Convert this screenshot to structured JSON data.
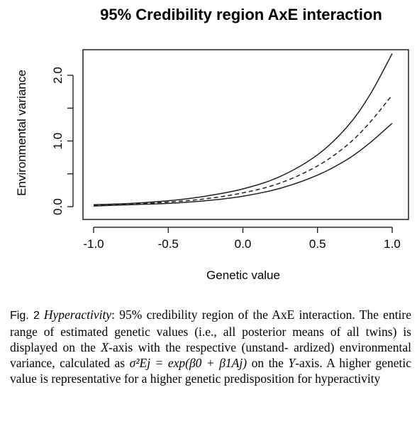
{
  "chart_data": {
    "type": "line",
    "title": "95% Credibility region AxE interaction",
    "xlabel": "Genetic value",
    "ylabel": "Environmental variance",
    "xlim": [
      -1.0,
      1.0
    ],
    "ylim": [
      0.0,
      2.45
    ],
    "xticks": [
      "-1.0",
      "-0.5",
      "0.0",
      "0.5",
      "1.0"
    ],
    "xtick_values": [
      -1.0,
      -0.5,
      0.0,
      0.5,
      1.0
    ],
    "yticks": [
      "0.0",
      "1.0",
      "2.0"
    ],
    "ytick_values": [
      0.0,
      1.0,
      2.0
    ],
    "ytick_minor_values": [
      0.5,
      1.5
    ],
    "grid": false,
    "legend": "none",
    "series": [
      {
        "style": "solid",
        "x": [
          -1.0,
          -0.75,
          -0.5,
          -0.25,
          0.0,
          0.25,
          0.5,
          0.7,
          0.85,
          1.0
        ],
        "values": [
          0.03,
          0.05,
          0.09,
          0.16,
          0.27,
          0.46,
          0.79,
          1.22,
          1.7,
          2.33
        ]
      },
      {
        "style": "dashed",
        "x": [
          -1.0,
          -0.75,
          -0.5,
          -0.25,
          0.0,
          0.25,
          0.5,
          0.7,
          0.85,
          1.0
        ],
        "values": [
          0.02,
          0.04,
          0.07,
          0.12,
          0.21,
          0.36,
          0.62,
          0.94,
          1.28,
          1.7
        ]
      },
      {
        "style": "solid",
        "x": [
          -1.0,
          -0.75,
          -0.5,
          -0.25,
          0.0,
          0.25,
          0.5,
          0.7,
          0.85,
          1.0
        ],
        "values": [
          0.01,
          0.03,
          0.05,
          0.09,
          0.16,
          0.28,
          0.48,
          0.72,
          0.97,
          1.27
        ]
      }
    ]
  },
  "caption": {
    "label": "Fig. 2",
    "italic_lead": "Hyperactivity",
    "line1_rest": ": 95% credibility region of the AxE interaction.",
    "line2": "The entire range of estimated genetic values (i.e., all posterior means",
    "line3": "of all twins) is displayed on the ",
    "line3_italic": "X",
    "line3_rest": "-axis with the respective (unstand-",
    "line4": "ardized) environmental variance, calculated as ",
    "formula": "σ²Ej = exp(β0 + β1Aj)",
    "line5": "on the ",
    "line5_italic": "Y",
    "line5_rest": "-axis. A higher genetic value is representative for a higher",
    "line6": "genetic predisposition for hyperactivity"
  }
}
